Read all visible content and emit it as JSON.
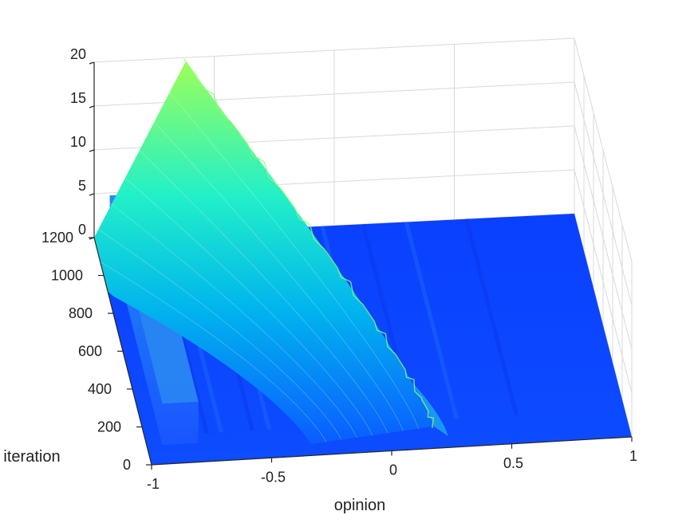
{
  "chart_data": {
    "type": "surface",
    "title": "",
    "xlabel": "opinion",
    "ylabel": "iteration",
    "zlabel": "",
    "xlim": [
      -1,
      1
    ],
    "ylim": [
      0,
      1200
    ],
    "zlim": [
      0,
      20
    ],
    "x_ticks": [
      "-1",
      "-0.5",
      "0",
      "0.5",
      "1"
    ],
    "y_ticks": [
      "0",
      "200",
      "400",
      "600",
      "800",
      "1000",
      "1200"
    ],
    "z_ticks": [
      "0",
      "5",
      "10",
      "15",
      "20"
    ],
    "grid": true,
    "colormap": "winter",
    "colors": {
      "low": "#0033ff",
      "mid": "#00ccdd",
      "high": "#99ff55"
    },
    "features": [
      {
        "x": -0.86,
        "y_range": [
          100,
          1200
        ],
        "z": 4.7
      },
      {
        "x": -0.62,
        "y": 1200,
        "z": 19.5
      }
    ]
  }
}
